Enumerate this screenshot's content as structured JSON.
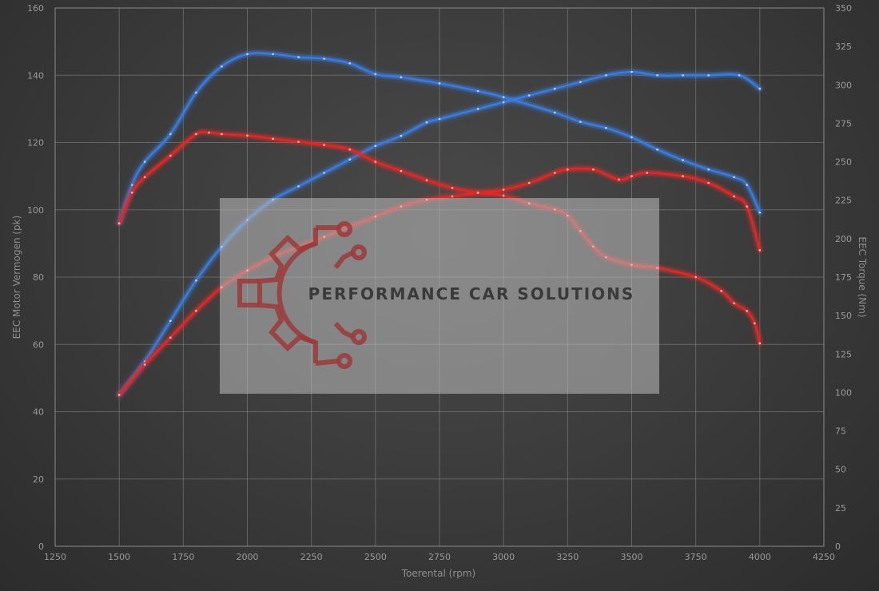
{
  "chart_data": {
    "type": "line",
    "xlabel": "Toerental (rpm)",
    "ylabel_left": "EEC Motor Vermogen (pk)",
    "ylabel_right": "EEC Torque (Nm)",
    "xlim": [
      1250,
      4250
    ],
    "ylim_left": [
      0,
      160
    ],
    "ylim_right": [
      0,
      350
    ],
    "x_ticks": [
      1250,
      1500,
      1750,
      2000,
      2250,
      2500,
      2750,
      3000,
      3250,
      3500,
      3750,
      4000,
      4250
    ],
    "y_ticks_left": [
      0,
      20,
      40,
      60,
      80,
      100,
      120,
      140,
      160
    ],
    "y_ticks_right": [
      0,
      25,
      50,
      75,
      100,
      125,
      150,
      175,
      200,
      225,
      250,
      275,
      300,
      325,
      350
    ],
    "grid": true,
    "series": [
      {
        "axis": "left",
        "color": "#3b7bdc",
        "points": [
          [
            1500,
            45
          ],
          [
            1600,
            55
          ],
          [
            1700,
            67
          ],
          [
            1800,
            79
          ],
          [
            1900,
            89
          ],
          [
            2000,
            97
          ],
          [
            2100,
            103
          ],
          [
            2200,
            107
          ],
          [
            2300,
            111
          ],
          [
            2400,
            115
          ],
          [
            2500,
            119
          ],
          [
            2600,
            122
          ],
          [
            2700,
            126
          ],
          [
            2750,
            127
          ],
          [
            2900,
            130
          ],
          [
            3000,
            132
          ],
          [
            3100,
            134
          ],
          [
            3200,
            136
          ],
          [
            3300,
            138
          ],
          [
            3400,
            140
          ],
          [
            3500,
            141
          ],
          [
            3600,
            140
          ],
          [
            3700,
            140
          ],
          [
            3800,
            140
          ],
          [
            3920,
            140
          ],
          [
            4000,
            136
          ]
        ]
      },
      {
        "axis": "right",
        "color": "#3b7bdc",
        "points": [
          [
            1500,
            210
          ],
          [
            1550,
            235
          ],
          [
            1600,
            250
          ],
          [
            1700,
            268
          ],
          [
            1800,
            295
          ],
          [
            1900,
            312
          ],
          [
            2000,
            320
          ],
          [
            2100,
            320
          ],
          [
            2200,
            318
          ],
          [
            2300,
            317
          ],
          [
            2400,
            314
          ],
          [
            2500,
            307
          ],
          [
            2600,
            305
          ],
          [
            2750,
            301
          ],
          [
            2900,
            296
          ],
          [
            3000,
            292
          ],
          [
            3200,
            282
          ],
          [
            3300,
            276
          ],
          [
            3400,
            272
          ],
          [
            3500,
            266
          ],
          [
            3600,
            258
          ],
          [
            3700,
            251
          ],
          [
            3800,
            245
          ],
          [
            3900,
            240
          ],
          [
            3950,
            235
          ],
          [
            4000,
            217
          ]
        ]
      },
      {
        "axis": "left",
        "color": "#e02828",
        "points": [
          [
            1500,
            45
          ],
          [
            1600,
            54
          ],
          [
            1700,
            62
          ],
          [
            1800,
            70
          ],
          [
            1900,
            77
          ],
          [
            2000,
            82
          ],
          [
            2100,
            86
          ],
          [
            2200,
            89
          ],
          [
            2300,
            92
          ],
          [
            2400,
            95
          ],
          [
            2500,
            98
          ],
          [
            2600,
            101
          ],
          [
            2700,
            103
          ],
          [
            2800,
            104
          ],
          [
            2900,
            105
          ],
          [
            3000,
            106
          ],
          [
            3100,
            108
          ],
          [
            3200,
            111
          ],
          [
            3250,
            112
          ],
          [
            3350,
            112
          ],
          [
            3450,
            109
          ],
          [
            3500,
            110
          ],
          [
            3560,
            111
          ],
          [
            3700,
            110
          ],
          [
            3800,
            108
          ],
          [
            3900,
            104
          ],
          [
            3950,
            101
          ],
          [
            4000,
            88
          ]
        ]
      },
      {
        "axis": "right",
        "color": "#e02828",
        "points": [
          [
            1500,
            210
          ],
          [
            1550,
            230
          ],
          [
            1600,
            240
          ],
          [
            1700,
            254
          ],
          [
            1800,
            268
          ],
          [
            1850,
            269
          ],
          [
            1900,
            268
          ],
          [
            2000,
            267
          ],
          [
            2100,
            265
          ],
          [
            2200,
            263
          ],
          [
            2300,
            261
          ],
          [
            2400,
            258
          ],
          [
            2500,
            250
          ],
          [
            2600,
            244
          ],
          [
            2700,
            238
          ],
          [
            2800,
            233
          ],
          [
            2900,
            230
          ],
          [
            3000,
            228
          ],
          [
            3100,
            223
          ],
          [
            3200,
            219
          ],
          [
            3250,
            215
          ],
          [
            3300,
            205
          ],
          [
            3350,
            195
          ],
          [
            3400,
            188
          ],
          [
            3500,
            183
          ],
          [
            3600,
            181
          ],
          [
            3750,
            175
          ],
          [
            3850,
            166
          ],
          [
            3900,
            158
          ],
          [
            3950,
            153
          ],
          [
            3980,
            145
          ],
          [
            4000,
            132
          ]
        ]
      }
    ]
  },
  "watermark": {
    "text": "PERFORMANCE CAR SOLUTIONS"
  }
}
